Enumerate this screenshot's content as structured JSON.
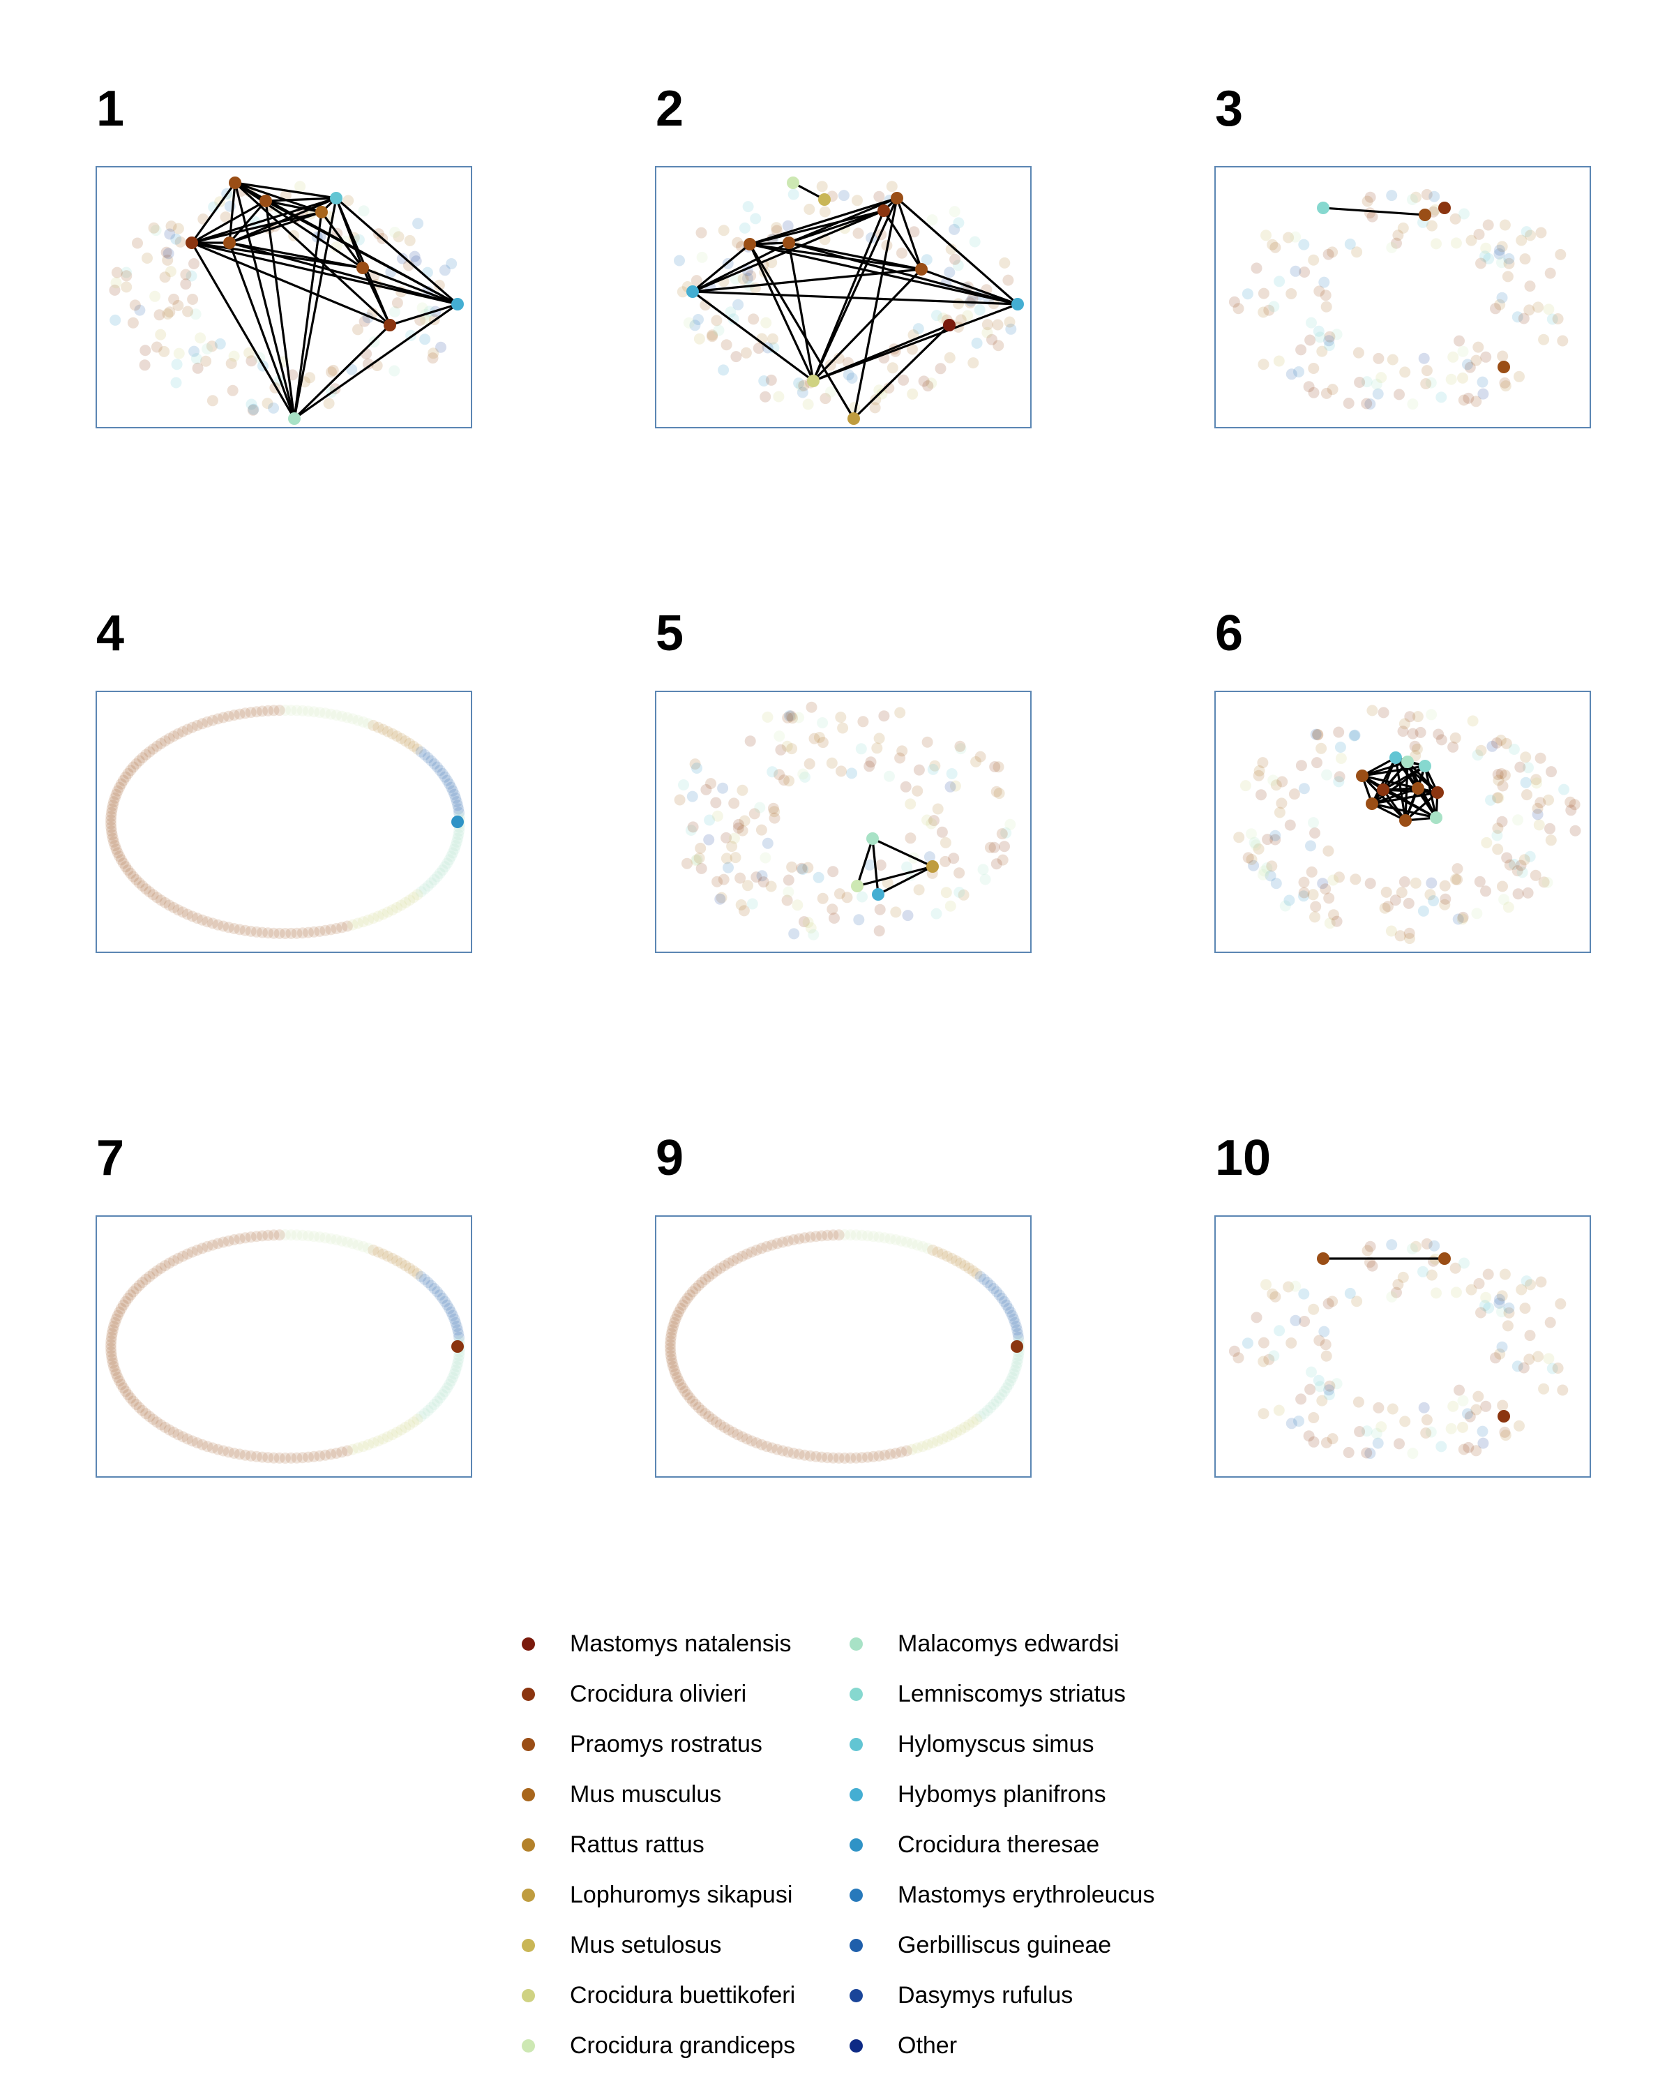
{
  "panels": [
    {
      "label": "1"
    },
    {
      "label": "2"
    },
    {
      "label": "3"
    },
    {
      "label": "4"
    },
    {
      "label": "5"
    },
    {
      "label": "6"
    },
    {
      "label": "7"
    },
    {
      "label": "9"
    },
    {
      "label": "10"
    }
  ],
  "legend": [
    {
      "label": "Mastomys natalensis",
      "color": "#7a1a0c"
    },
    {
      "label": "Crocidura olivieri",
      "color": "#8b3510"
    },
    {
      "label": "Praomys rostratus",
      "color": "#9a4e16"
    },
    {
      "label": "Mus musculus",
      "color": "#a8661c"
    },
    {
      "label": "Rattus rattus",
      "color": "#b3812a"
    },
    {
      "label": "Lophuromys sikapusi",
      "color": "#bf9c3f"
    },
    {
      "label": "Mus setulosus",
      "color": "#c9b656"
    },
    {
      "label": "Crocidura buettikoferi",
      "color": "#cfd282"
    },
    {
      "label": "Crocidura grandiceps",
      "color": "#cde8b3"
    },
    {
      "label": "Malacomys edwardsi",
      "color": "#a8e2c6"
    },
    {
      "label": "Lemniscomys striatus",
      "color": "#86d8cf"
    },
    {
      "label": "Hylomyscus simus",
      "color": "#62c5d3"
    },
    {
      "label": "Hybomys planifrons",
      "color": "#44aed2"
    },
    {
      "label": "Crocidura theresae",
      "color": "#2f93c6"
    },
    {
      "label": "Mastomys erythroleucus",
      "color": "#2779bb"
    },
    {
      "label": "Gerbilliscus guineae",
      "color": "#1f5fab"
    },
    {
      "label": "Dasymys rufulus",
      "color": "#1a4599"
    },
    {
      "label": "Other",
      "color": "#0d2a85"
    }
  ]
}
